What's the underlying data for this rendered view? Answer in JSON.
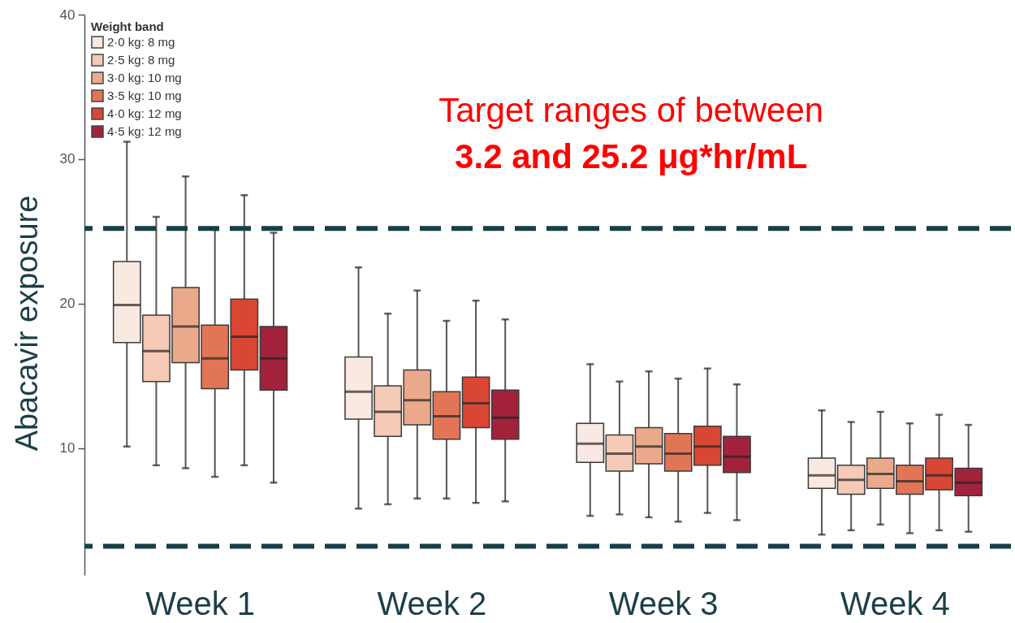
{
  "chart_data": {
    "type": "box",
    "ylabel": "Abacavir exposure",
    "legend_title": "Weight band",
    "legend": "top left",
    "categories": [
      "Week 1",
      "Week 2",
      "Week 3",
      "Week 4"
    ],
    "series": [
      {
        "name": "2·0 kg: 8 mg",
        "color": "#fae9e0",
        "boxes": [
          {
            "low": 10.1,
            "q1": 17.3,
            "median": 19.9,
            "q3": 22.9,
            "high": 31.2
          },
          {
            "low": 5.8,
            "q1": 12.0,
            "median": 13.9,
            "q3": 16.3,
            "high": 22.5
          },
          {
            "low": 5.3,
            "q1": 9.0,
            "median": 10.3,
            "q3": 11.7,
            "high": 15.8
          },
          {
            "low": 4.0,
            "q1": 7.2,
            "median": 8.1,
            "q3": 9.3,
            "high": 12.6
          }
        ]
      },
      {
        "name": "2·5 kg: 8 mg",
        "color": "#f5cab6",
        "boxes": [
          {
            "low": 8.8,
            "q1": 14.6,
            "median": 16.7,
            "q3": 19.2,
            "high": 26.0
          },
          {
            "low": 6.1,
            "q1": 10.8,
            "median": 12.5,
            "q3": 14.3,
            "high": 19.3
          },
          {
            "low": 5.4,
            "q1": 8.4,
            "median": 9.6,
            "q3": 10.9,
            "high": 14.6
          },
          {
            "low": 4.3,
            "q1": 6.8,
            "median": 7.8,
            "q3": 8.8,
            "high": 11.8
          }
        ]
      },
      {
        "name": "3·0 kg: 10 mg",
        "color": "#eba98b",
        "boxes": [
          {
            "low": 8.6,
            "q1": 15.9,
            "median": 18.4,
            "q3": 21.1,
            "high": 28.8
          },
          {
            "low": 6.5,
            "q1": 11.6,
            "median": 13.3,
            "q3": 15.4,
            "high": 20.9
          },
          {
            "low": 5.2,
            "q1": 8.9,
            "median": 10.1,
            "q3": 11.4,
            "high": 15.3
          },
          {
            "low": 4.7,
            "q1": 7.2,
            "median": 8.2,
            "q3": 9.3,
            "high": 12.5
          }
        ]
      },
      {
        "name": "3·5 kg: 10 mg",
        "color": "#e27556",
        "boxes": [
          {
            "low": 8.0,
            "q1": 14.1,
            "median": 16.2,
            "q3": 18.5,
            "high": 25.1
          },
          {
            "low": 6.5,
            "q1": 10.6,
            "median": 12.2,
            "q3": 13.9,
            "high": 18.8
          },
          {
            "low": 4.9,
            "q1": 8.4,
            "median": 9.6,
            "q3": 11.0,
            "high": 14.8
          },
          {
            "low": 4.1,
            "q1": 6.8,
            "median": 7.7,
            "q3": 8.8,
            "high": 11.7
          }
        ]
      },
      {
        "name": "4·0 kg: 12 mg",
        "color": "#d94633",
        "boxes": [
          {
            "low": 8.8,
            "q1": 15.4,
            "median": 17.7,
            "q3": 20.3,
            "high": 27.5
          },
          {
            "low": 6.2,
            "q1": 11.4,
            "median": 13.1,
            "q3": 14.9,
            "high": 20.2
          },
          {
            "low": 5.5,
            "q1": 8.8,
            "median": 10.1,
            "q3": 11.5,
            "high": 15.5
          },
          {
            "low": 4.3,
            "q1": 7.1,
            "median": 8.1,
            "q3": 9.3,
            "high": 12.3
          }
        ]
      },
      {
        "name": "4·5 kg: 12 mg",
        "color": "#a2223c",
        "boxes": [
          {
            "low": 7.6,
            "q1": 14.0,
            "median": 16.2,
            "q3": 18.4,
            "high": 24.9
          },
          {
            "low": 6.3,
            "q1": 10.6,
            "median": 12.1,
            "q3": 14.0,
            "high": 18.9
          },
          {
            "low": 5.0,
            "q1": 8.3,
            "median": 9.4,
            "q3": 10.8,
            "high": 14.4
          },
          {
            "low": 4.2,
            "q1": 6.7,
            "median": 7.6,
            "q3": 8.6,
            "high": 11.6
          }
        ]
      }
    ],
    "ylim": [
      1.2,
      40
    ],
    "yticks": [
      10,
      20,
      30,
      40
    ],
    "ref_lines": [
      {
        "axis": "y",
        "value": 25.2,
        "color": "#173f48",
        "line_style": "dashed"
      },
      {
        "axis": "y",
        "value": 3.2,
        "color": "#173f48",
        "line_style": "dashed"
      }
    ],
    "annotations": [
      "Target ranges of between",
      "3.2 and 25.2 μg*hr/mL"
    ]
  }
}
